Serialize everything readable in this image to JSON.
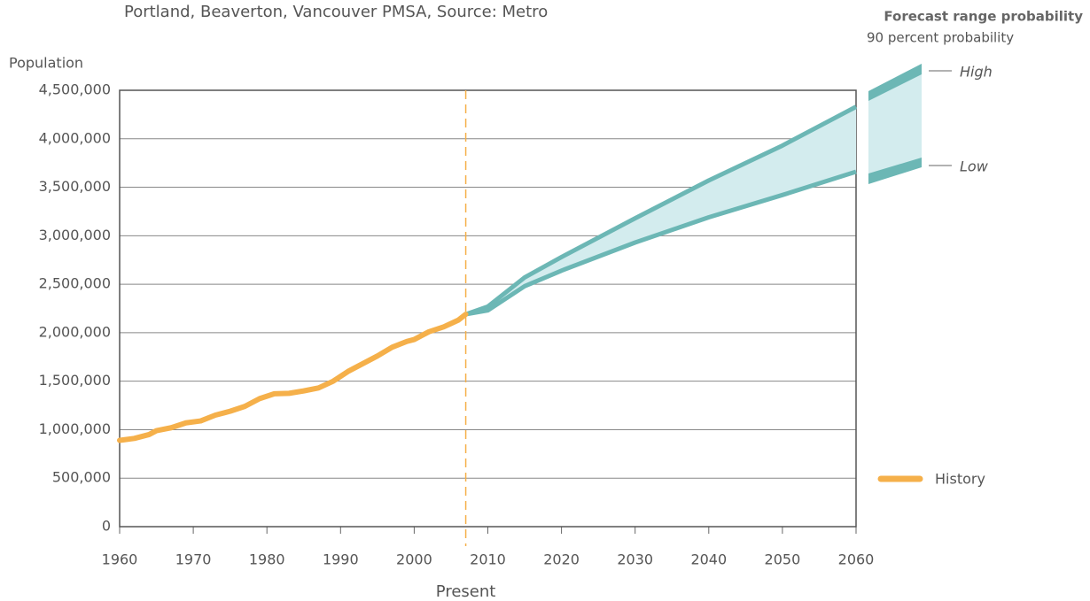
{
  "chart_data": {
    "type": "line",
    "subtitle": "Portland, Beaverton, Vancouver PMSA, Source: Metro",
    "y_label": "Population",
    "series": [
      {
        "name": "History",
        "color": "#f5b04a",
        "x": [
          1960,
          1962,
          1964,
          1965,
          1967,
          1969,
          1971,
          1973,
          1975,
          1977,
          1979,
          1981,
          1983,
          1985,
          1987,
          1989,
          1991,
          1993,
          1995,
          1997,
          1999,
          2000,
          2002,
          2004,
          2006,
          2007
        ],
        "values": [
          890000,
          910000,
          950000,
          990000,
          1020000,
          1070000,
          1090000,
          1150000,
          1190000,
          1240000,
          1320000,
          1370000,
          1375000,
          1400000,
          1430000,
          1500000,
          1600000,
          1680000,
          1760000,
          1850000,
          1910000,
          1930000,
          2010000,
          2060000,
          2130000,
          2190000
        ]
      }
    ],
    "forecast": {
      "title": "Forecast range probability",
      "subtitle": "90 percent probability",
      "fill": "#d3ecee",
      "edge": "#6cb7b5",
      "x": [
        2007,
        2010,
        2015,
        2020,
        2030,
        2040,
        2050,
        2060
      ],
      "high": {
        "name": "High",
        "values": [
          2190000,
          2270000,
          2570000,
          2780000,
          3180000,
          3570000,
          3930000,
          4330000
        ]
      },
      "low": {
        "name": "Low",
        "values": [
          2190000,
          2230000,
          2480000,
          2640000,
          2930000,
          3190000,
          3420000,
          3660000
        ]
      }
    },
    "present_line": {
      "x": 2007,
      "label": "Present",
      "color": "#f5b04a"
    },
    "xlim": [
      1960,
      2060
    ],
    "xticks": [
      1960,
      1970,
      1980,
      1990,
      2000,
      2010,
      2020,
      2030,
      2040,
      2050,
      2060
    ],
    "ylim": [
      0,
      4500000
    ],
    "yticks": [
      0,
      {
        "value": 500000,
        "label": "500,000"
      },
      {
        "value": 1000000,
        "label": "1,000,000"
      },
      {
        "value": 1500000,
        "label": "1,500,000"
      },
      {
        "value": 2000000,
        "label": "2,000,000"
      },
      {
        "value": 2500000,
        "label": "2,500,000"
      },
      {
        "value": 3000000,
        "label": "3,000,000"
      },
      {
        "value": 3500000,
        "label": "3,500,000"
      },
      {
        "value": 4000000,
        "label": "4,000,000"
      },
      {
        "value": 4500000,
        "label": "4,500,000"
      }
    ],
    "grid": true
  }
}
